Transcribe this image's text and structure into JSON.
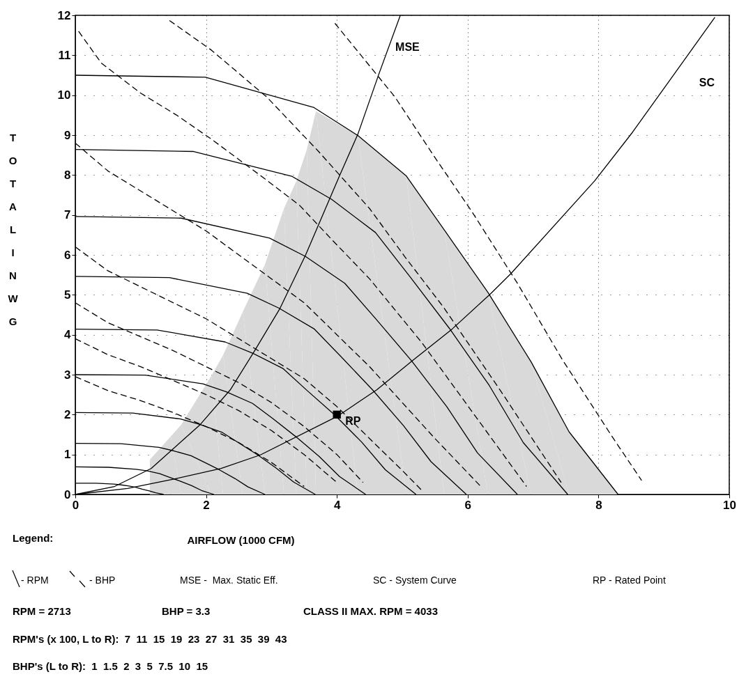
{
  "chart_data": {
    "type": "line",
    "xlabel": "AIRFLOW (1000 CFM)",
    "ylabel": "TOTAL IN WG",
    "xlim": [
      0,
      10
    ],
    "ylim": [
      0,
      12
    ],
    "xticks": [
      0,
      2,
      4,
      6,
      8,
      10
    ],
    "yticks": [
      0,
      1,
      2,
      3,
      4,
      5,
      6,
      7,
      8,
      9,
      10,
      11,
      12
    ],
    "grid": true,
    "series": [
      {
        "type": "area",
        "color": "#d9d9d9",
        "x": [
          1.14,
          1.46,
          1.62,
          2.08,
          2.26,
          2.56,
          2.9,
          3.19,
          3.38,
          3.54,
          3.68,
          4.32,
          5.06,
          5.64,
          6.31,
          6.97,
          7.55,
          8.3
        ],
        "values": [
          0.87,
          1.45,
          1.75,
          2.97,
          3.49,
          4.57,
          5.76,
          7.16,
          7.85,
          8.64,
          9.6,
          8.99,
          7.98,
          6.63,
          5.06,
          3.32,
          1.57,
          0
        ]
      },
      {
        "type": "line",
        "color": "#000000",
        "line_style": "solid",
        "x": [
          0,
          0.32,
          0.59,
          0.7,
          0.82,
          0.92,
          1.03,
          1.13,
          1.23,
          1.35
        ],
        "values": [
          0.28,
          0.28,
          0.26,
          0.24,
          0.21,
          0.18,
          0.13,
          0.09,
          0.04,
          0
        ]
      },
      {
        "type": "line",
        "color": "#000000",
        "line_style": "solid",
        "x": [
          0,
          0.51,
          0.93,
          1.1,
          1.29,
          1.44,
          1.61,
          1.78,
          1.93,
          2.12
        ],
        "values": [
          0.69,
          0.68,
          0.63,
          0.59,
          0.52,
          0.43,
          0.33,
          0.22,
          0.1,
          0
        ]
      },
      {
        "type": "line",
        "color": "#000000",
        "line_style": "solid",
        "x": [
          0,
          0.7,
          1.28,
          1.51,
          1.77,
          1.97,
          2.2,
          2.44,
          2.64,
          2.9
        ],
        "values": [
          1.28,
          1.27,
          1.18,
          1.09,
          0.97,
          0.81,
          0.62,
          0.4,
          0.19,
          0
        ]
      },
      {
        "type": "line",
        "color": "#000000",
        "line_style": "solid",
        "x": [
          0,
          0.88,
          1.61,
          1.91,
          2.24,
          2.5,
          2.79,
          3.08,
          3.34,
          3.67
        ],
        "values": [
          2.05,
          2.04,
          1.89,
          1.75,
          1.56,
          1.29,
          0.99,
          0.65,
          0.31,
          0
        ]
      },
      {
        "type": "line",
        "color": "#000000",
        "line_style": "solid",
        "x": [
          0,
          1.07,
          1.95,
          2.31,
          2.71,
          3.02,
          3.37,
          3.73,
          4.04,
          4.44
        ],
        "values": [
          3.0,
          2.99,
          2.77,
          2.57,
          2.28,
          1.9,
          1.45,
          0.95,
          0.45,
          0
        ]
      },
      {
        "type": "line",
        "color": "#000000",
        "line_style": "solid",
        "x": [
          0,
          1.25,
          2.29,
          2.71,
          3.18,
          3.54,
          3.96,
          4.38,
          4.74,
          5.21
        ],
        "values": [
          4.14,
          4.12,
          3.82,
          3.54,
          3.15,
          2.61,
          2.0,
          1.31,
          0.62,
          0
        ]
      },
      {
        "type": "line",
        "color": "#000000",
        "line_style": "solid",
        "x": [
          0,
          1.44,
          2.63,
          3.11,
          3.65,
          4.07,
          4.54,
          5.02,
          5.44,
          5.98
        ],
        "values": [
          5.46,
          5.43,
          5.04,
          4.67,
          4.15,
          3.44,
          2.63,
          1.72,
          0.82,
          0
        ]
      },
      {
        "type": "line",
        "color": "#000000",
        "line_style": "solid",
        "x": [
          0,
          1.62,
          2.97,
          3.52,
          4.12,
          4.6,
          5.14,
          5.68,
          6.15,
          6.76
        ],
        "values": [
          6.96,
          6.92,
          6.42,
          5.96,
          5.29,
          4.39,
          3.35,
          2.2,
          1.04,
          0
        ]
      },
      {
        "type": "line",
        "color": "#000000",
        "line_style": "solid",
        "x": [
          0,
          1.81,
          3.31,
          3.92,
          4.59,
          5.12,
          5.72,
          6.33,
          6.85,
          7.53
        ],
        "values": [
          8.64,
          8.59,
          7.97,
          7.39,
          6.56,
          5.45,
          4.16,
          2.73,
          1.3,
          0
        ]
      },
      {
        "type": "line",
        "color": "#000000",
        "line_style": "solid",
        "x": [
          0,
          1.99,
          3.65,
          4.32,
          5.06,
          5.64,
          6.31,
          6.97,
          7.55,
          8.3
        ],
        "values": [
          10.5,
          10.45,
          9.69,
          8.99,
          7.98,
          6.63,
          5.06,
          3.32,
          1.57,
          0
        ]
      },
      {
        "type": "line",
        "color": "#000000",
        "line_style": "dashed",
        "x": [
          0,
          0.5,
          1.0,
          1.5,
          2.0,
          2.5,
          3.0,
          3.5
        ],
        "values": [
          2.95,
          2.6,
          2.35,
          2.05,
          1.7,
          1.3,
          0.8,
          0.2
        ]
      },
      {
        "type": "line",
        "color": "#000000",
        "line_style": "dashed",
        "x": [
          0,
          0.5,
          1.0,
          1.5,
          2.0,
          2.5,
          3.0,
          3.5,
          4.0
        ],
        "values": [
          3.9,
          3.5,
          3.2,
          2.85,
          2.5,
          2.1,
          1.6,
          1.0,
          0.3
        ]
      },
      {
        "type": "line",
        "color": "#000000",
        "line_style": "dashed",
        "x": [
          0,
          0.5,
          1.0,
          1.5,
          2.0,
          2.5,
          3.0,
          3.5,
          4.0,
          4.4
        ],
        "values": [
          4.8,
          4.3,
          3.95,
          3.6,
          3.2,
          2.8,
          2.3,
          1.7,
          1.0,
          0.3
        ]
      },
      {
        "type": "line",
        "color": "#000000",
        "line_style": "dashed",
        "x": [
          0,
          0.5,
          1.0,
          1.5,
          2.0,
          2.5,
          3.0,
          3.5,
          4.0,
          4.5,
          5.0,
          5.3
        ],
        "values": [
          6.2,
          5.6,
          5.2,
          4.8,
          4.4,
          3.9,
          3.4,
          2.9,
          2.2,
          1.4,
          0.6,
          0.1
        ]
      },
      {
        "type": "line",
        "color": "#000000",
        "line_style": "dashed",
        "x": [
          0,
          0.5,
          1.0,
          1.5,
          2.0,
          2.5,
          3.0,
          3.5,
          4.0,
          4.5,
          5.0,
          5.5,
          6.2
        ],
        "values": [
          8.8,
          8.1,
          7.6,
          7.1,
          6.6,
          6.0,
          5.4,
          4.8,
          4.0,
          3.2,
          2.3,
          1.4,
          0.2
        ]
      },
      {
        "type": "line",
        "color": "#000000",
        "line_style": "dashed",
        "x": [
          0.05,
          0.4,
          1.0,
          1.55,
          2.08,
          2.87,
          3.43,
          3.93,
          4.5,
          5.3,
          6.1,
          6.9
        ],
        "values": [
          11.6,
          10.8,
          10.05,
          9.5,
          8.9,
          7.94,
          7.24,
          6.37,
          5.4,
          3.8,
          2.0,
          0.2
        ]
      },
      {
        "type": "line",
        "color": "#000000",
        "line_style": "dashed",
        "x": [
          1.44,
          2.08,
          2.93,
          3.72,
          4.5,
          5.05,
          5.63,
          6.51,
          7.43
        ],
        "values": [
          11.87,
          11.13,
          9.95,
          8.59,
          7.16,
          5.93,
          4.69,
          2.58,
          0.3
        ]
      },
      {
        "type": "line",
        "color": "#000000",
        "line_style": "dashed",
        "x": [
          3.97,
          4.89,
          5.49,
          6.07,
          6.76,
          7.45,
          8.2,
          8.66
        ],
        "values": [
          11.8,
          9.95,
          8.46,
          7.07,
          5.29,
          3.37,
          1.47,
          0.35
        ]
      },
      {
        "type": "line",
        "color": "#000000",
        "line_style": "solid",
        "x": [
          0,
          0.6,
          1.16,
          1.91,
          2.37,
          2.72,
          3.13,
          3.52,
          4.04,
          4.32,
          4.64,
          4.97
        ],
        "values": [
          0,
          0.2,
          0.65,
          1.75,
          2.62,
          3.54,
          4.66,
          5.99,
          7.98,
          9.02,
          10.52,
          12
        ]
      },
      {
        "type": "line",
        "color": "#000000",
        "line_style": "solid",
        "x": [
          0,
          0.8,
          1.55,
          2.23,
          2.83,
          4.0,
          4.61,
          5.17,
          5.76,
          6.34,
          6.66,
          7.94,
          8.52,
          9.08,
          9.78
        ],
        "values": [
          0,
          0.15,
          0.4,
          0.65,
          0.99,
          1.95,
          2.62,
          3.37,
          4.14,
          5.01,
          5.53,
          7.85,
          9.07,
          10.35,
          11.95
        ]
      },
      {
        "type": "scatter",
        "color": "#000000",
        "marker": "square",
        "x": [
          4.0
        ],
        "values": [
          2.0
        ]
      }
    ],
    "annotations": [
      {
        "text": "MSE",
        "x": 4.83,
        "y": 11.2
      },
      {
        "text": "SC",
        "x": 9.06,
        "y": 10.3
      },
      {
        "text": "RP",
        "x": 4.0,
        "y": 2.0
      },
      "Legend:",
      "- RPM",
      "- BHP",
      "MSE -  Max. Static Eff.",
      "SC - System Curve",
      "RP - Rated Point",
      "RPM = 2713",
      "BHP = 3.3",
      "CLASS II MAX. RPM = 4033",
      "RPM's (x 100, L to R):  7  11  15  19  23  27  31  35  39  43",
      "BHP's (L to R):  1  1.5  2  3  5  7.5  10  15"
    ]
  }
}
